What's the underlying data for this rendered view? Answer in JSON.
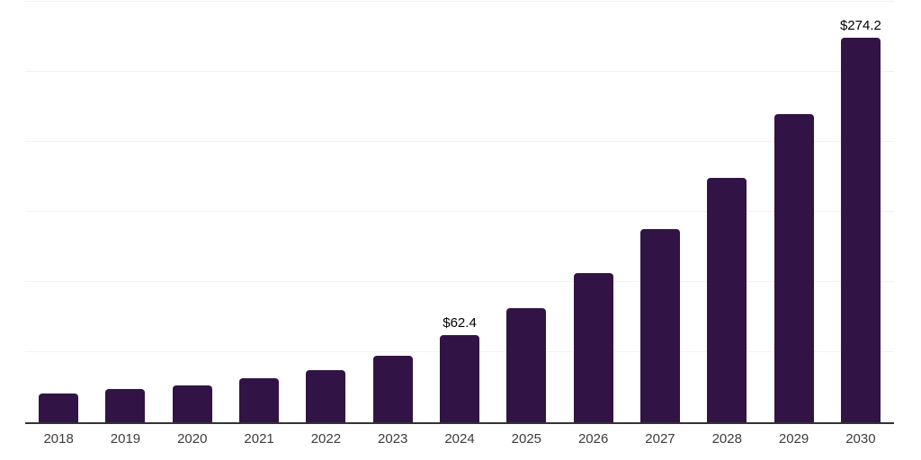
{
  "chart_data": {
    "type": "bar",
    "title": "",
    "xlabel": "",
    "ylabel": "",
    "categories": [
      "2018",
      "2019",
      "2020",
      "2021",
      "2022",
      "2023",
      "2024",
      "2025",
      "2026",
      "2027",
      "2028",
      "2029",
      "2030"
    ],
    "values": [
      20.8,
      24.0,
      26.1,
      31.7,
      37.0,
      47.6,
      62.4,
      81.5,
      106.5,
      137.6,
      174.5,
      220.0,
      274.2
    ],
    "data_labels": [
      "",
      "",
      "",
      "",
      "",
      "",
      "$62.4",
      "",
      "",
      "",
      "",
      "",
      "$274.2"
    ],
    "ylim": [
      0,
      300
    ],
    "gridline_step": 50,
    "grid": "horizontal",
    "legend": "none",
    "colors": {
      "bar_fill": "#321345",
      "axis_line": "#333333",
      "gridline": "#f2f2f2",
      "value_label": "#000000",
      "tick_label": "#3c3c3c",
      "background": "#ffffff"
    }
  }
}
